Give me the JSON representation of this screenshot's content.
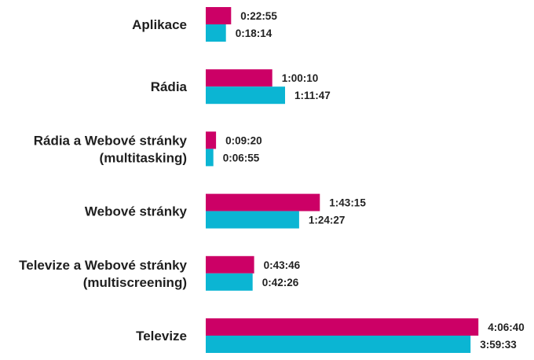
{
  "chart_data": {
    "type": "bar",
    "orientation": "horizontal",
    "categories": [
      [
        "Aplikace"
      ],
      [
        "Rádia"
      ],
      [
        "Rádia a Webové stránky",
        "(multitasking)"
      ],
      [
        "Webové stránky"
      ],
      [
        "Televize a Webové stránky",
        "(multiscreening)"
      ],
      [
        "Televize"
      ]
    ],
    "series": [
      {
        "color": "#cc0066",
        "values": [
          "0:22:55",
          "1:00:10",
          "0:09:20",
          "1:43:15",
          "0:43:46",
          "4:06:40"
        ]
      },
      {
        "color": "#0bb5d3",
        "values": [
          "0:18:14",
          "1:11:47",
          "0:06:55",
          "1:24:27",
          "0:42:26",
          "3:59:33"
        ]
      }
    ],
    "legend": "none",
    "grid": false
  }
}
